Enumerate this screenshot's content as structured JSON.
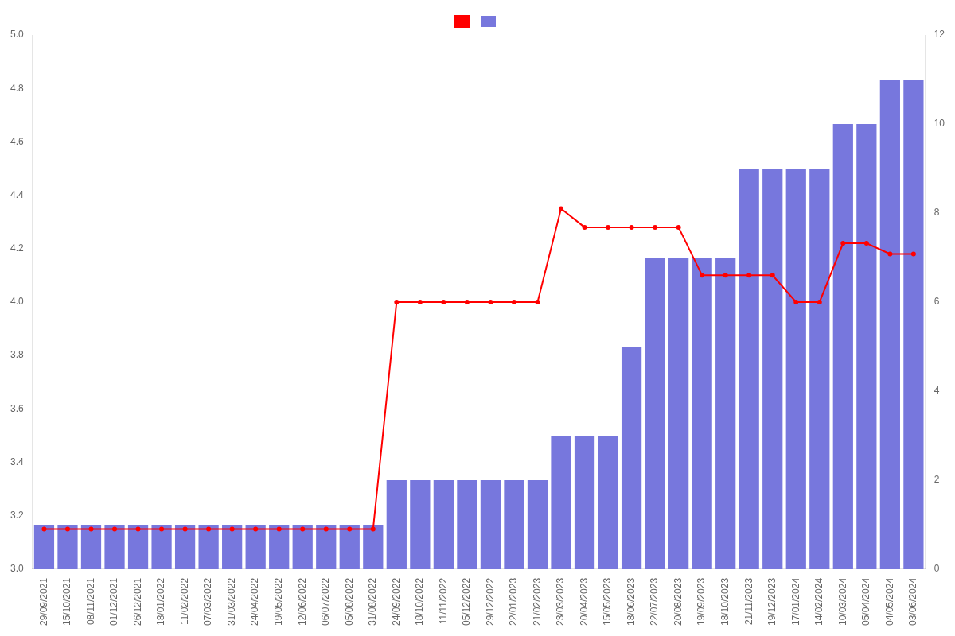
{
  "chart_data": {
    "type": "bar",
    "categories": [
      "29/09/2021",
      "15/10/2021",
      "08/11/2021",
      "01/12/2021",
      "26/12/2021",
      "18/01/2022",
      "11/02/2022",
      "07/03/2022",
      "31/03/2022",
      "24/04/2022",
      "19/05/2022",
      "12/06/2022",
      "06/07/2022",
      "05/08/2022",
      "31/08/2022",
      "24/09/2022",
      "18/10/2022",
      "11/11/2022",
      "05/12/2022",
      "29/12/2022",
      "22/01/2023",
      "21/02/2023",
      "23/03/2023",
      "20/04/2023",
      "15/05/2023",
      "18/06/2023",
      "22/07/2023",
      "20/08/2023",
      "19/09/2023",
      "18/10/2023",
      "21/11/2023",
      "19/12/2023",
      "17/01/2024",
      "14/02/2024",
      "10/03/2024",
      "05/04/2024",
      "04/05/2024",
      "03/06/2024"
    ],
    "series": [
      {
        "type": "line",
        "color": "#ff0000",
        "marker": "circle",
        "values": [
          3.15,
          3.15,
          3.15,
          3.15,
          3.15,
          3.15,
          3.15,
          3.15,
          3.15,
          3.15,
          3.15,
          3.15,
          3.15,
          3.15,
          3.15,
          4.0,
          4.0,
          4.0,
          4.0,
          4.0,
          4.0,
          4.0,
          4.35,
          4.28,
          4.28,
          4.28,
          4.28,
          4.28,
          4.1,
          4.1,
          4.1,
          4.1,
          4.0,
          4.0,
          4.22,
          4.22,
          4.18,
          4.18
        ]
      },
      {
        "type": "bar",
        "color": "#7777dd",
        "axis": "y2",
        "values": [
          1,
          1,
          1,
          1,
          1,
          1,
          1,
          1,
          1,
          1,
          1,
          1,
          1,
          1,
          1,
          2,
          2,
          2,
          2,
          2,
          2,
          2,
          3,
          3,
          3,
          5,
          7,
          7,
          7,
          7,
          9,
          9,
          9,
          9,
          10,
          10,
          11,
          11
        ]
      }
    ],
    "ylim": [
      3.0,
      5.0
    ],
    "yticks": [
      {
        "value": 3.0,
        "label": "3.0"
      },
      3.2,
      3.4,
      3.6,
      3.8,
      {
        "value": 4.0,
        "label": "4.0"
      },
      4.2,
      4.4,
      4.6,
      4.8,
      {
        "value": 5.0,
        "label": "5.0"
      }
    ],
    "y2lim": [
      0,
      12
    ],
    "y2ticks": [
      0,
      2,
      4,
      6,
      8,
      10,
      12
    ],
    "grid": false,
    "legend": "top"
  }
}
